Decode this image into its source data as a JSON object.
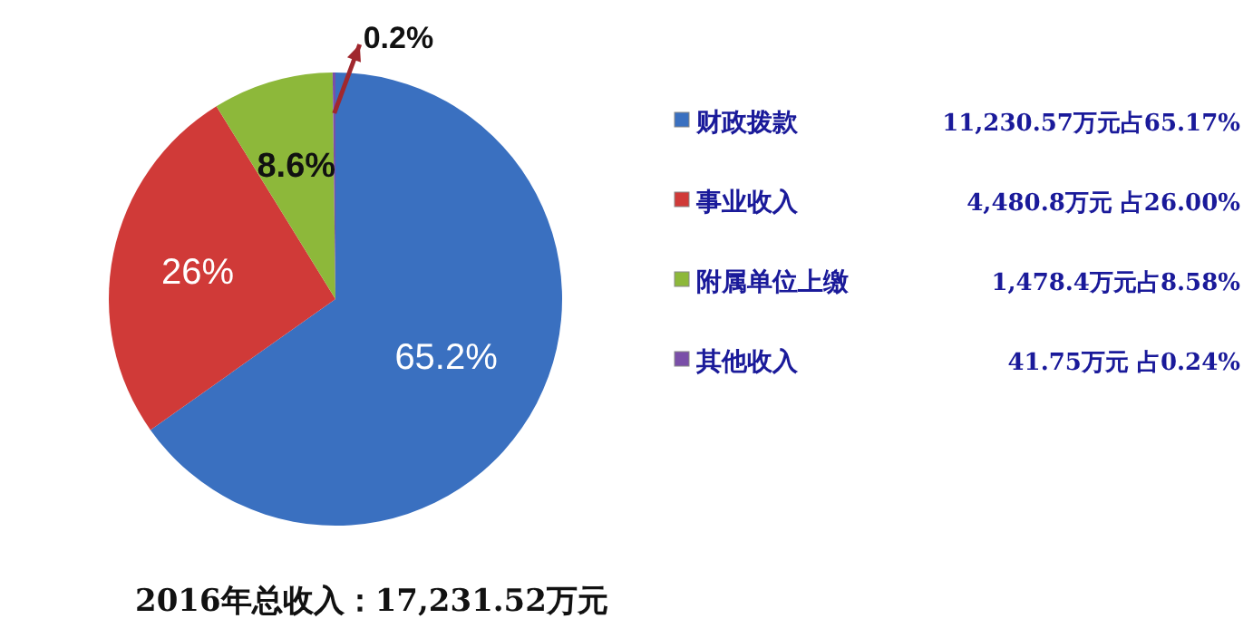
{
  "chart_data": {
    "type": "pie",
    "title": "2016年总收入：17,231.52万元",
    "categories": [
      "财政拨款",
      "事业收入",
      "附属单位上缴",
      "其他收入"
    ],
    "values": [
      65.2,
      26,
      8.6,
      0.2
    ],
    "value_labels": [
      "65.2%",
      "26%",
      "8.6%",
      "0.2%"
    ],
    "colors": [
      "#3a70c0",
      "#d03a38",
      "#8db83a",
      "#7a4fa8"
    ],
    "legend": "right",
    "annotations": [
      "11,230.57万元占65.17%",
      "4,480.8万元 占26.00%",
      "1,478.4万元占8.58%",
      "41.75万元 占0.24%"
    ]
  }
}
